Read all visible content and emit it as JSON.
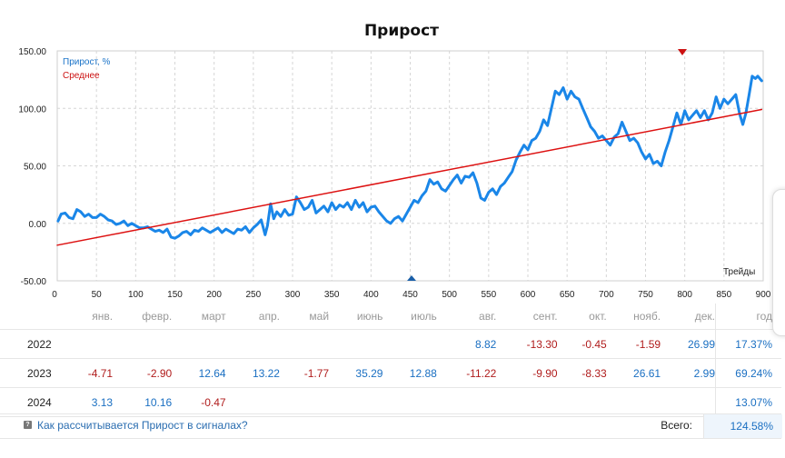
{
  "chart_data": {
    "type": "line",
    "title": "Прирост",
    "xlabel": "Трейды",
    "ylabel": "",
    "xlim": [
      0,
      900
    ],
    "ylim": [
      -50,
      150
    ],
    "x_ticks": [
      "0",
      "50",
      "100",
      "150",
      "200",
      "250",
      "300",
      "350",
      "400",
      "450",
      "500",
      "550",
      "600",
      "650",
      "700",
      "750",
      "800",
      "850",
      "900"
    ],
    "y_ticks": [
      "150.00",
      "100.00",
      "50.00",
      "0.00",
      "-50.00"
    ],
    "grid": true,
    "legend_position": "top-left",
    "series": [
      {
        "name": "Прирост, %",
        "color": "#1a86e8",
        "points": [
          [
            1,
            2
          ],
          [
            5,
            8
          ],
          [
            10,
            9
          ],
          [
            15,
            5
          ],
          [
            20,
            4
          ],
          [
            25,
            12
          ],
          [
            30,
            10
          ],
          [
            35,
            6
          ],
          [
            40,
            8
          ],
          [
            45,
            5
          ],
          [
            50,
            5
          ],
          [
            55,
            8
          ],
          [
            60,
            6
          ],
          [
            65,
            3
          ],
          [
            70,
            2
          ],
          [
            75,
            -1
          ],
          [
            80,
            0
          ],
          [
            85,
            2
          ],
          [
            90,
            -2
          ],
          [
            95,
            0
          ],
          [
            100,
            -2
          ],
          [
            105,
            -4
          ],
          [
            110,
            -4
          ],
          [
            115,
            -3
          ],
          [
            120,
            -5
          ],
          [
            125,
            -7
          ],
          [
            130,
            -6
          ],
          [
            135,
            -8
          ],
          [
            140,
            -5
          ],
          [
            145,
            -12
          ],
          [
            150,
            -13
          ],
          [
            155,
            -11
          ],
          [
            160,
            -8
          ],
          [
            165,
            -7
          ],
          [
            170,
            -10
          ],
          [
            175,
            -6
          ],
          [
            180,
            -7
          ],
          [
            185,
            -4
          ],
          [
            190,
            -6
          ],
          [
            195,
            -8
          ],
          [
            200,
            -6
          ],
          [
            205,
            -4
          ],
          [
            210,
            -8
          ],
          [
            215,
            -5
          ],
          [
            220,
            -7
          ],
          [
            225,
            -9
          ],
          [
            230,
            -5
          ],
          [
            235,
            -6
          ],
          [
            240,
            -3
          ],
          [
            245,
            -8
          ],
          [
            250,
            -4
          ],
          [
            255,
            -1
          ],
          [
            260,
            3
          ],
          [
            265,
            -10
          ],
          [
            268,
            -2
          ],
          [
            272,
            17
          ],
          [
            276,
            4
          ],
          [
            280,
            10
          ],
          [
            285,
            6
          ],
          [
            290,
            12
          ],
          [
            295,
            7
          ],
          [
            300,
            8
          ],
          [
            305,
            23
          ],
          [
            310,
            18
          ],
          [
            315,
            12
          ],
          [
            320,
            14
          ],
          [
            325,
            20
          ],
          [
            330,
            9
          ],
          [
            335,
            12
          ],
          [
            340,
            15
          ],
          [
            345,
            10
          ],
          [
            350,
            18
          ],
          [
            355,
            12
          ],
          [
            360,
            16
          ],
          [
            365,
            14
          ],
          [
            370,
            18
          ],
          [
            375,
            12
          ],
          [
            380,
            20
          ],
          [
            385,
            14
          ],
          [
            390,
            18
          ],
          [
            395,
            10
          ],
          [
            400,
            14
          ],
          [
            405,
            15
          ],
          [
            410,
            10
          ],
          [
            415,
            6
          ],
          [
            420,
            2
          ],
          [
            425,
            0
          ],
          [
            430,
            4
          ],
          [
            435,
            6
          ],
          [
            440,
            2
          ],
          [
            445,
            8
          ],
          [
            450,
            14
          ],
          [
            455,
            20
          ],
          [
            460,
            18
          ],
          [
            465,
            24
          ],
          [
            470,
            28
          ],
          [
            475,
            38
          ],
          [
            480,
            34
          ],
          [
            485,
            36
          ],
          [
            490,
            30
          ],
          [
            495,
            28
          ],
          [
            500,
            33
          ],
          [
            505,
            38
          ],
          [
            510,
            42
          ],
          [
            515,
            35
          ],
          [
            520,
            41
          ],
          [
            525,
            40
          ],
          [
            530,
            44
          ],
          [
            535,
            35
          ],
          [
            540,
            22
          ],
          [
            545,
            20
          ],
          [
            550,
            27
          ],
          [
            555,
            30
          ],
          [
            560,
            25
          ],
          [
            565,
            32
          ],
          [
            570,
            35
          ],
          [
            575,
            40
          ],
          [
            580,
            45
          ],
          [
            585,
            55
          ],
          [
            590,
            62
          ],
          [
            595,
            68
          ],
          [
            600,
            64
          ],
          [
            605,
            72
          ],
          [
            610,
            74
          ],
          [
            615,
            80
          ],
          [
            620,
            90
          ],
          [
            625,
            85
          ],
          [
            630,
            100
          ],
          [
            635,
            115
          ],
          [
            640,
            112
          ],
          [
            645,
            118
          ],
          [
            650,
            108
          ],
          [
            655,
            115
          ],
          [
            660,
            110
          ],
          [
            665,
            108
          ],
          [
            670,
            100
          ],
          [
            675,
            92
          ],
          [
            680,
            84
          ],
          [
            685,
            80
          ],
          [
            690,
            74
          ],
          [
            695,
            76
          ],
          [
            700,
            72
          ],
          [
            705,
            68
          ],
          [
            710,
            75
          ],
          [
            715,
            78
          ],
          [
            720,
            88
          ],
          [
            725,
            80
          ],
          [
            730,
            72
          ],
          [
            735,
            74
          ],
          [
            740,
            70
          ],
          [
            745,
            62
          ],
          [
            750,
            56
          ],
          [
            755,
            60
          ],
          [
            760,
            52
          ],
          [
            765,
            54
          ],
          [
            770,
            50
          ],
          [
            775,
            62
          ],
          [
            780,
            72
          ],
          [
            785,
            84
          ],
          [
            790,
            96
          ],
          [
            795,
            86
          ],
          [
            800,
            98
          ],
          [
            805,
            90
          ],
          [
            810,
            94
          ],
          [
            815,
            98
          ],
          [
            820,
            92
          ],
          [
            825,
            98
          ],
          [
            830,
            90
          ],
          [
            835,
            96
          ],
          [
            840,
            110
          ],
          [
            845,
            100
          ],
          [
            850,
            108
          ],
          [
            855,
            104
          ],
          [
            860,
            108
          ],
          [
            865,
            112
          ],
          [
            870,
            95
          ],
          [
            874,
            86
          ],
          [
            878,
            96
          ],
          [
            882,
            112
          ],
          [
            884,
            120
          ],
          [
            886,
            128
          ],
          [
            890,
            126
          ],
          [
            893,
            128
          ],
          [
            898,
            124
          ]
        ]
      },
      {
        "name": "Среднее",
        "color": "#dd1111",
        "points": [
          [
            0,
            -19
          ],
          [
            898,
            99
          ]
        ]
      }
    ]
  },
  "table": {
    "months": [
      "янв.",
      "февр.",
      "март",
      "апр.",
      "май",
      "июнь",
      "июль",
      "авг.",
      "сент.",
      "окт.",
      "нояб.",
      "дек."
    ],
    "year_header": "год",
    "rows": [
      {
        "year": "2022",
        "values": [
          "",
          "",
          "",
          "",
          "",
          "",
          "",
          "8.82",
          "-13.30",
          "-0.45",
          "-1.59",
          "26.99"
        ],
        "total": "17.37%"
      },
      {
        "year": "2023",
        "values": [
          "-4.71",
          "-2.90",
          "12.64",
          "13.22",
          "-1.77",
          "35.29",
          "12.88",
          "-11.22",
          "-9.90",
          "-8.33",
          "26.61",
          "2.99"
        ],
        "total": "69.24%"
      },
      {
        "year": "2024",
        "values": [
          "3.13",
          "10.16",
          "-0.47",
          "",
          "",
          "",
          "",
          "",
          "",
          "",
          "",
          ""
        ],
        "total": "13.07%"
      }
    ]
  },
  "footer": {
    "help_link": "Как рассчитывается Прирост в сигналах?",
    "help_icon": "question-icon",
    "total_label": "Всего:",
    "total_value": "124.58%"
  }
}
